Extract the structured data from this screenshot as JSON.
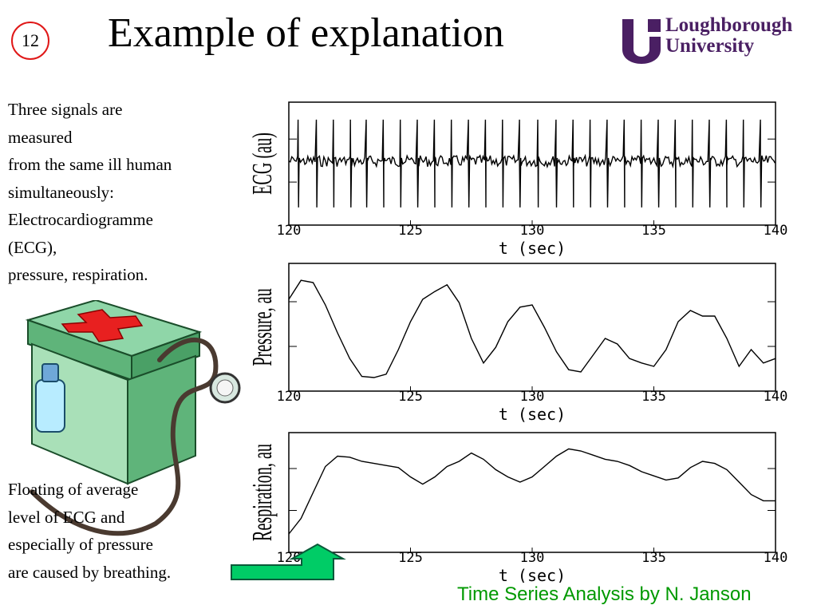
{
  "slide": {
    "number": "12",
    "title": "Example of explanation",
    "logo_line1": "Loughborough",
    "logo_line2": "University",
    "footer": "Time Series Analysis by N. Janson",
    "top_text_lines": [
      "Three signals are",
      "measured",
      "from the same ill human",
      "simultaneously:",
      "Electrocardiogramme",
      "(ECG),",
      "pressure, respiration."
    ],
    "bottom_text_lines": [
      "Floating of average",
      "level of ECG and",
      "especially of pressure",
      "are caused by breathing."
    ],
    "illustration_icon": "first-aid-kit-stethoscope-icon",
    "arrow_icon": "green-up-arrow-icon",
    "colors": {
      "slide_number_circle": "#e01818",
      "logo": "#4a1f63",
      "footer": "#009900",
      "arrow": "#00cc66"
    }
  },
  "chart_data": [
    {
      "type": "line",
      "ylabel": "ECG (au)",
      "xlabel": "t (sec)",
      "xlim": [
        120,
        140
      ],
      "x_ticks": [
        "120",
        "125",
        "130",
        "135",
        "140"
      ],
      "grid": false,
      "series": [
        {
          "description_free": true,
          "beat_times": [
            120.4,
            121.15,
            121.85,
            122.55,
            123.2,
            123.9,
            124.6,
            125.3,
            126.0,
            126.7,
            127.4,
            128.1,
            128.8,
            129.5,
            130.25,
            131.0,
            131.7,
            132.4,
            133.1,
            133.8,
            134.5,
            135.2,
            135.9,
            136.6,
            137.3,
            138.0,
            138.7,
            139.4
          ]
        }
      ]
    },
    {
      "type": "line",
      "ylabel": "Pressure, au",
      "xlabel": "t (sec)",
      "xlim": [
        120,
        140
      ],
      "x_ticks": [
        "120",
        "125",
        "130",
        "135",
        "140"
      ],
      "ylim": [
        0,
        1
      ],
      "grid": false,
      "series": [
        {
          "x": [
            120,
            120.5,
            121,
            121.5,
            122,
            122.5,
            123,
            123.5,
            124,
            124.5,
            125,
            125.5,
            126,
            126.5,
            127,
            127.5,
            128,
            128.5,
            129,
            129.5,
            130,
            130.5,
            131,
            131.5,
            132,
            132.5,
            133,
            133.5,
            134,
            134.5,
            135,
            135.5,
            136,
            136.5,
            137,
            137.5,
            138,
            138.5,
            139,
            139.5,
            140
          ],
          "y": [
            0.75,
            0.92,
            0.9,
            0.7,
            0.45,
            0.22,
            0.06,
            0.05,
            0.08,
            0.3,
            0.55,
            0.75,
            0.82,
            0.88,
            0.72,
            0.4,
            0.18,
            0.32,
            0.55,
            0.68,
            0.7,
            0.5,
            0.28,
            0.12,
            0.1,
            0.25,
            0.4,
            0.35,
            0.22,
            0.18,
            0.15,
            0.3,
            0.55,
            0.65,
            0.6,
            0.6,
            0.4,
            0.15,
            0.3,
            0.18,
            0.22
          ]
        }
      ]
    },
    {
      "type": "line",
      "ylabel": "Respiration, au",
      "xlabel": "t (sec)",
      "xlim": [
        120,
        140
      ],
      "x_ticks": [
        "120",
        "125",
        "130",
        "135",
        "140"
      ],
      "ylim": [
        0,
        1
      ],
      "grid": false,
      "series": [
        {
          "x": [
            120,
            120.5,
            121,
            121.5,
            122,
            122.5,
            123,
            123.5,
            124,
            124.5,
            125,
            125.5,
            126,
            126.5,
            127,
            127.5,
            128,
            128.5,
            129,
            129.5,
            130,
            130.5,
            131,
            131.5,
            132,
            132.5,
            133,
            133.5,
            134,
            134.5,
            135,
            135.5,
            136,
            136.5,
            137,
            137.5,
            138,
            138.5,
            139,
            139.5,
            140
          ],
          "y": [
            0.1,
            0.25,
            0.5,
            0.75,
            0.85,
            0.84,
            0.8,
            0.78,
            0.76,
            0.74,
            0.65,
            0.58,
            0.65,
            0.75,
            0.8,
            0.88,
            0.82,
            0.72,
            0.65,
            0.6,
            0.65,
            0.75,
            0.85,
            0.92,
            0.9,
            0.86,
            0.82,
            0.8,
            0.76,
            0.7,
            0.66,
            0.62,
            0.64,
            0.74,
            0.8,
            0.78,
            0.72,
            0.6,
            0.48,
            0.42,
            0.42
          ]
        }
      ]
    }
  ]
}
